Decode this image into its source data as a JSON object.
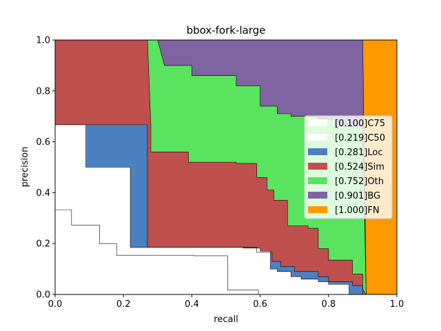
{
  "chart_data": {
    "type": "area",
    "title": "bbox-fork-large",
    "xlabel": "recall",
    "ylabel": "precision",
    "xlim": [
      0,
      1
    ],
    "ylim": [
      0,
      1
    ],
    "x_ticks": [
      "0.0",
      "0.2",
      "0.4",
      "0.6",
      "0.8",
      "1.0"
    ],
    "y_ticks": [
      "0.0",
      "0.2",
      "0.4",
      "0.6",
      "0.8",
      "1.0"
    ],
    "grid": false,
    "legend_position": "center-right",
    "series": [
      {
        "name": "[0.100]C75",
        "color": "#ffffff",
        "points": [
          [
            0,
            0.333
          ],
          [
            0.048,
            0.333
          ],
          [
            0.048,
            0.273
          ],
          [
            0.13,
            0.273
          ],
          [
            0.13,
            0.2
          ],
          [
            0.18,
            0.2
          ],
          [
            0.18,
            0.154
          ],
          [
            0.405,
            0.154
          ],
          [
            0.405,
            0.152
          ],
          [
            0.505,
            0.152
          ],
          [
            0.505,
            0.017
          ],
          [
            0.595,
            0.017
          ],
          [
            0.595,
            0.0
          ],
          [
            0.91,
            0.0
          ]
        ]
      },
      {
        "name": "[0.219]C50",
        "color": "#ffffff",
        "points": [
          [
            0,
            0.667
          ],
          [
            0.09,
            0.667
          ],
          [
            0.09,
            0.5
          ],
          [
            0.22,
            0.5
          ],
          [
            0.22,
            0.185
          ],
          [
            0.55,
            0.185
          ],
          [
            0.55,
            0.182
          ],
          [
            0.6,
            0.182
          ],
          [
            0.6,
            0.17
          ],
          [
            0.63,
            0.17
          ],
          [
            0.63,
            0.1
          ],
          [
            0.65,
            0.1
          ],
          [
            0.65,
            0.09
          ],
          [
            0.69,
            0.09
          ],
          [
            0.69,
            0.07
          ],
          [
            0.72,
            0.07
          ],
          [
            0.72,
            0.06
          ],
          [
            0.77,
            0.06
          ],
          [
            0.77,
            0.05
          ],
          [
            0.8,
            0.05
          ],
          [
            0.8,
            0.04
          ],
          [
            0.86,
            0.04
          ],
          [
            0.86,
            0.0
          ],
          [
            0.91,
            0.0
          ]
        ]
      },
      {
        "name": "[0.281]Loc",
        "color": "#4c81c1",
        "points": [
          [
            0,
            0.667
          ],
          [
            0.27,
            0.667
          ],
          [
            0.27,
            0.185
          ],
          [
            0.59,
            0.185
          ],
          [
            0.59,
            0.165
          ],
          [
            0.635,
            0.165
          ],
          [
            0.635,
            0.13
          ],
          [
            0.66,
            0.13
          ],
          [
            0.66,
            0.11
          ],
          [
            0.7,
            0.11
          ],
          [
            0.7,
            0.09
          ],
          [
            0.77,
            0.09
          ],
          [
            0.77,
            0.07
          ],
          [
            0.8,
            0.07
          ],
          [
            0.8,
            0.05
          ],
          [
            0.87,
            0.05
          ],
          [
            0.87,
            0.035
          ],
          [
            0.9,
            0.035
          ],
          [
            0.9,
            0.0
          ],
          [
            0.91,
            0.0
          ]
        ]
      },
      {
        "name": "[0.524]Sim",
        "color": "#c0504d",
        "points": [
          [
            0,
            1.0
          ],
          [
            0.27,
            1.0
          ],
          [
            0.28,
            0.667
          ],
          [
            0.28,
            0.56
          ],
          [
            0.39,
            0.56
          ],
          [
            0.39,
            0.52
          ],
          [
            0.53,
            0.52
          ],
          [
            0.53,
            0.515
          ],
          [
            0.59,
            0.515
          ],
          [
            0.59,
            0.46
          ],
          [
            0.62,
            0.46
          ],
          [
            0.62,
            0.41
          ],
          [
            0.64,
            0.41
          ],
          [
            0.64,
            0.37
          ],
          [
            0.68,
            0.37
          ],
          [
            0.68,
            0.27
          ],
          [
            0.74,
            0.27
          ],
          [
            0.74,
            0.26
          ],
          [
            0.77,
            0.26
          ],
          [
            0.77,
            0.18
          ],
          [
            0.8,
            0.18
          ],
          [
            0.8,
            0.135
          ],
          [
            0.87,
            0.135
          ],
          [
            0.87,
            0.08
          ],
          [
            0.9,
            0.08
          ],
          [
            0.9,
            0.02
          ],
          [
            0.91,
            0.0
          ]
        ]
      },
      {
        "name": "[0.752]Oth",
        "color": "#5ae35e",
        "points": [
          [
            0,
            1.0
          ],
          [
            0.3,
            1.0
          ],
          [
            0.32,
            0.9
          ],
          [
            0.4,
            0.9
          ],
          [
            0.4,
            0.86
          ],
          [
            0.53,
            0.86
          ],
          [
            0.53,
            0.82
          ],
          [
            0.6,
            0.82
          ],
          [
            0.6,
            0.74
          ],
          [
            0.65,
            0.74
          ],
          [
            0.65,
            0.71
          ],
          [
            0.69,
            0.71
          ],
          [
            0.69,
            0.7
          ],
          [
            0.77,
            0.7
          ],
          [
            0.77,
            0.69
          ],
          [
            0.82,
            0.69
          ],
          [
            0.82,
            0.66
          ],
          [
            0.9,
            0.66
          ],
          [
            0.91,
            0.0
          ]
        ]
      },
      {
        "name": "[0.901]BG",
        "color": "#8064a2",
        "points": [
          [
            0,
            1.0
          ],
          [
            0.9,
            1.0
          ],
          [
            0.91,
            0.0
          ]
        ]
      },
      {
        "name": "[1.000]FN",
        "color": "#ff9900",
        "points": [
          [
            0,
            1.0
          ],
          [
            1.0,
            1.0
          ],
          [
            1.0,
            0.0
          ]
        ]
      }
    ]
  }
}
